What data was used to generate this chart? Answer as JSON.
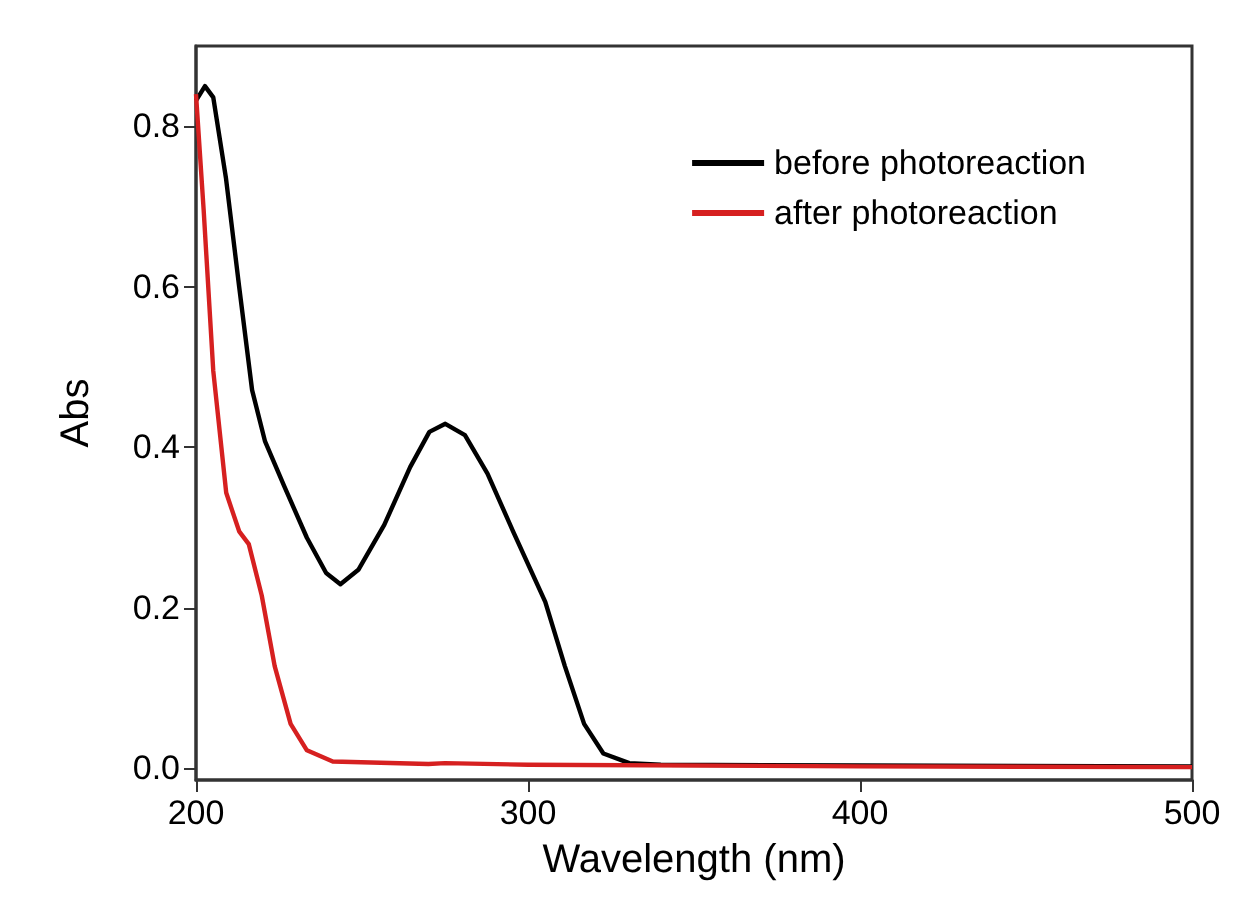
{
  "chart_data": {
    "type": "line",
    "xlabel": "Wavelength (nm)",
    "ylabel": "Abs",
    "xlim": [
      200,
      500
    ],
    "ylim": [
      -0.015,
      0.9
    ],
    "xticks": [
      200,
      300,
      400,
      500
    ],
    "yticks": [
      {
        "value": 0,
        "label": "0.0"
      },
      0.2,
      0.4,
      0.6,
      0.8
    ],
    "grid": false,
    "legend": "top right",
    "marker": "none",
    "line_style": "solid",
    "series": [
      {
        "name": "before photoreaction",
        "color": "#000000",
        "x": [
          200,
          202.7,
          205.2,
          209,
          213,
          216.9,
          220.8,
          226.6,
          233.4,
          239.2,
          243.5,
          248.9,
          256.7,
          264.5,
          270.3,
          275.1,
          281,
          287.8,
          295.5,
          305.2,
          311.1,
          316.9,
          322.7,
          330.5,
          340,
          400,
          500
        ],
        "values": [
          0.832,
          0.85,
          0.836,
          0.736,
          0.6,
          0.471,
          0.407,
          0.351,
          0.287,
          0.243,
          0.229,
          0.247,
          0.303,
          0.375,
          0.419,
          0.429,
          0.415,
          0.367,
          0.295,
          0.207,
          0.127,
          0.055,
          0.018,
          0.006,
          0.004,
          0.003,
          0.002
        ]
      },
      {
        "name": "after photoreaction",
        "color": "#d62020",
        "x": [
          200,
          202.3,
          205.2,
          209.1,
          213,
          215.9,
          219.8,
          223.7,
          228.5,
          233.4,
          241.2,
          270,
          275,
          300,
          400,
          500
        ],
        "values": [
          0.84,
          0.696,
          0.495,
          0.343,
          0.295,
          0.279,
          0.215,
          0.127,
          0.055,
          0.022,
          0.008,
          0.005,
          0.006,
          0.004,
          0.002,
          0.001
        ]
      }
    ]
  }
}
